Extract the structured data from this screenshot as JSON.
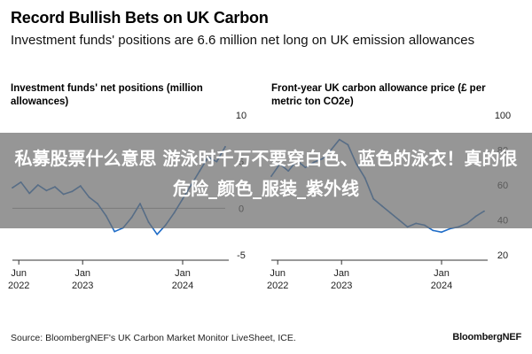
{
  "header": {
    "title": "Record Bullish Bets on UK Carbon",
    "subtitle": "Investment funds' positions are 6.6 million net long on UK emission allowances"
  },
  "footer": {
    "source": "Source: BloombergNEF's UK Carbon Market Monitor LiveSheet, ICE.",
    "brand": "BloombergNEF"
  },
  "overlay": {
    "text": "私募股票什么意思 游泳时千万不要穿白色、蓝色的泳衣！真的很危险_颜色_服装_紫外线"
  },
  "colors": {
    "line": "#1f6cc7",
    "zero_line": "#999999",
    "banner": "#6e6e6e"
  },
  "chart_data": [
    {
      "type": "line",
      "title": "Investment funds' net positions (million allowances)",
      "x_ticks": [
        "Jun\n2022",
        "Jan\n2023",
        "Jan\n2024"
      ],
      "y_ticks": [
        10,
        5,
        0,
        -5
      ],
      "ylim": [
        -5,
        10
      ],
      "axis_side": "right",
      "series": [
        {
          "x": [
            "2022-06",
            "2022-07",
            "2022-08",
            "2022-09",
            "2022-10",
            "2022-11",
            "2022-12",
            "2023-01",
            "2023-02",
            "2023-03",
            "2023-04",
            "2023-05",
            "2023-06",
            "2023-07",
            "2023-08",
            "2023-09",
            "2023-10",
            "2023-11",
            "2023-12",
            "2024-01",
            "2024-02",
            "2024-03",
            "2024-04",
            "2024-05",
            "2024-06",
            "2024-07"
          ],
          "values": [
            2.2,
            2.8,
            1.6,
            2.5,
            1.9,
            2.3,
            1.5,
            1.8,
            2.4,
            1.2,
            0.5,
            -0.8,
            -2.5,
            -2.1,
            -1.0,
            0.5,
            -1.5,
            -2.8,
            -1.8,
            -0.5,
            1.0,
            2.5,
            4.0,
            5.5,
            5.0,
            6.6
          ]
        }
      ]
    },
    {
      "type": "line",
      "title": "Front-year UK carbon allowance price (£ per metric ton CO2e)",
      "x_ticks": [
        "Jun\n2022",
        "Jan\n2023",
        "Jan\n2024"
      ],
      "y_ticks": [
        100,
        80,
        60,
        40,
        20
      ],
      "ylim": [
        20,
        100
      ],
      "axis_side": "right",
      "series": [
        {
          "x": [
            "2022-06",
            "2022-07",
            "2022-08",
            "2022-09",
            "2022-10",
            "2022-11",
            "2022-12",
            "2023-01",
            "2023-02",
            "2023-03",
            "2023-04",
            "2023-05",
            "2023-06",
            "2023-07",
            "2023-08",
            "2023-09",
            "2023-10",
            "2023-11",
            "2023-12",
            "2024-01",
            "2024-02",
            "2024-03",
            "2024-04",
            "2024-05",
            "2024-06",
            "2024-07"
          ],
          "values": [
            65,
            72,
            68,
            74,
            70,
            73,
            75,
            80,
            86,
            83,
            72,
            64,
            52,
            48,
            44,
            40,
            36,
            38,
            37,
            34,
            33,
            35,
            36,
            38,
            42,
            45
          ]
        }
      ]
    }
  ]
}
